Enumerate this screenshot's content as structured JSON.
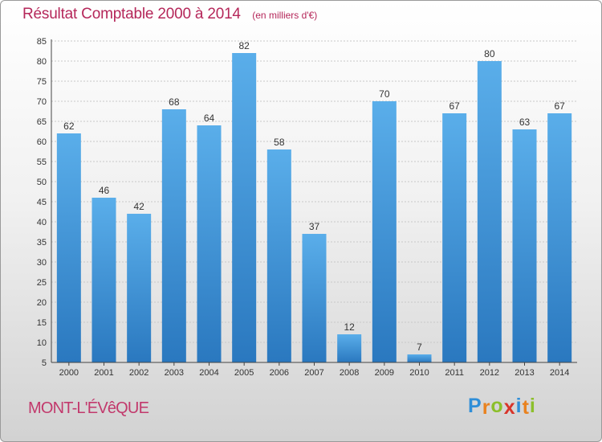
{
  "chart_data": {
    "type": "bar",
    "title": "Résultat Comptable 2000 à 2014",
    "subtitle": "(en milliers d'€)",
    "categories": [
      "2000",
      "2001",
      "2002",
      "2003",
      "2004",
      "2005",
      "2006",
      "2007",
      "2008",
      "2009",
      "2010",
      "2011",
      "2012",
      "2013",
      "2014"
    ],
    "values": [
      62,
      46,
      42,
      68,
      64,
      82,
      58,
      37,
      12,
      70,
      7,
      67,
      80,
      63,
      67
    ],
    "ylim": [
      5,
      85
    ],
    "yticks": [
      5,
      10,
      15,
      20,
      25,
      30,
      35,
      40,
      45,
      50,
      55,
      60,
      65,
      70,
      75,
      80,
      85
    ],
    "grid": true,
    "bar_color": "#3d8fd6"
  },
  "location": "MONT-L'ÉVêQUE",
  "brand": {
    "letters": [
      "P",
      "r",
      "o",
      "x",
      "i",
      "t",
      "i"
    ],
    "colors": [
      "#2f8ed8",
      "#e9821f",
      "#8cbf2b",
      "#d8342a",
      "#2f8ed8",
      "#e9821f",
      "#8cbf2b"
    ]
  }
}
